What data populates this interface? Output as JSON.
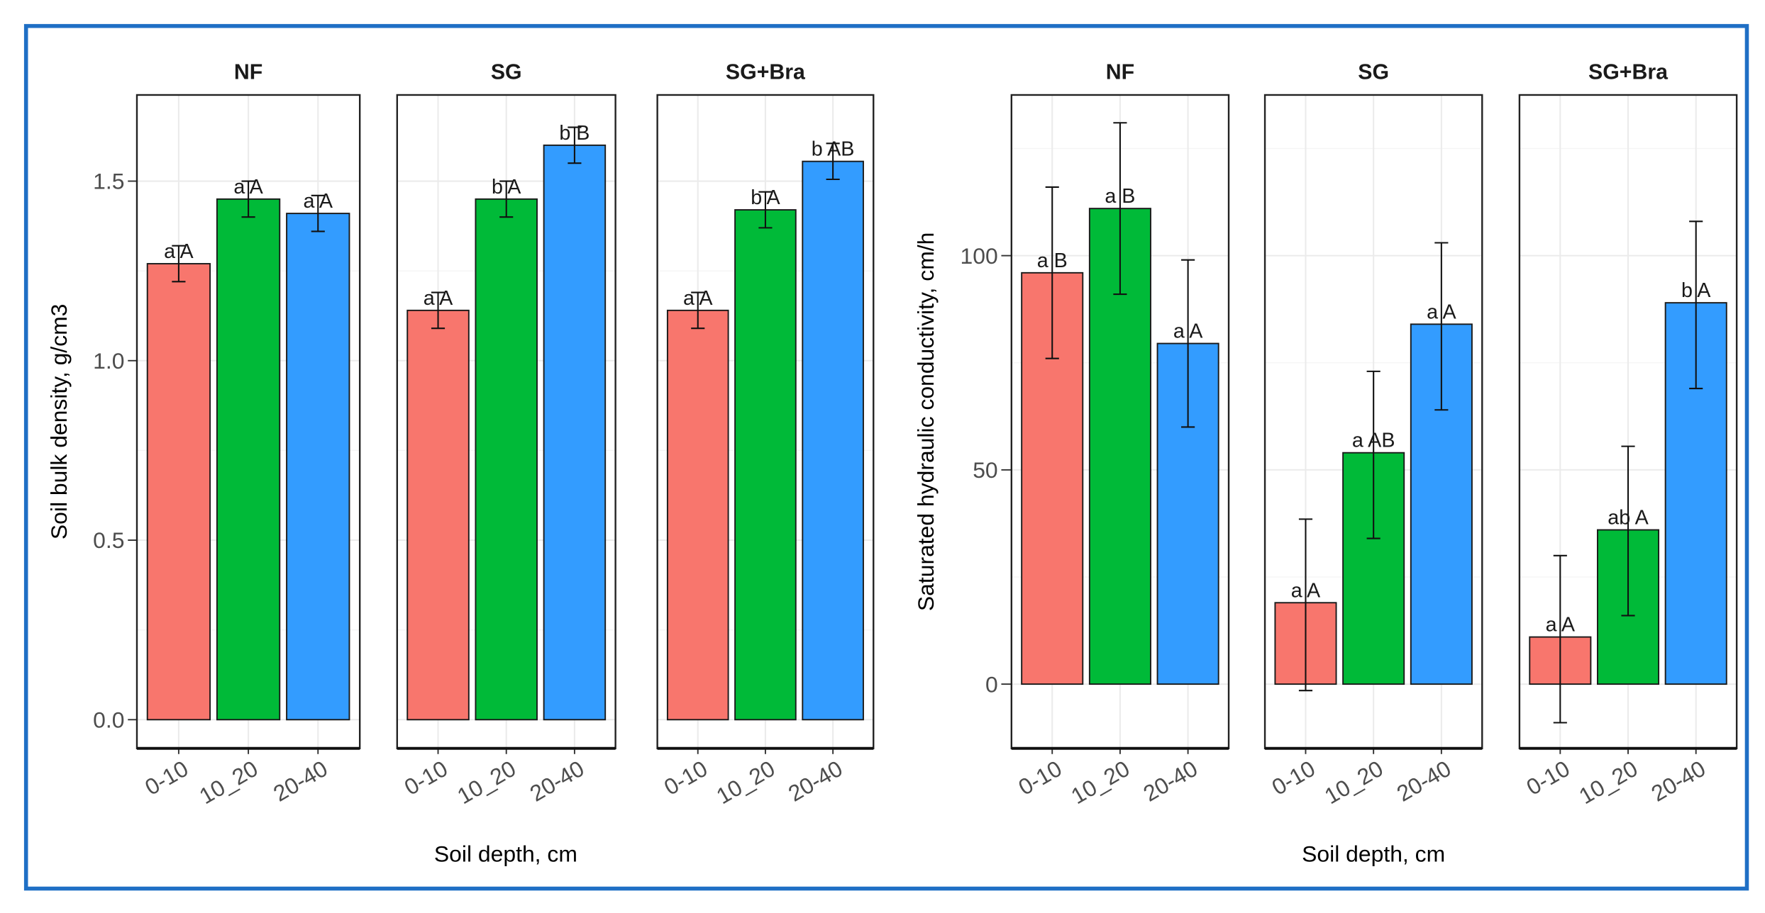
{
  "chart_data": [
    {
      "type": "bar",
      "title": "",
      "xlabel": "Soil depth, cm",
      "ylabel": "Soil bulk density, g/cm3",
      "ylim": [
        -0.08,
        1.74
      ],
      "yticks": [
        0.0,
        0.5,
        1.0,
        1.5
      ],
      "ytick_labels": [
        "0.0",
        "0.5",
        "1.0",
        "1.5"
      ],
      "categories": [
        "0-10",
        "10_20",
        "20-40"
      ],
      "colors": [
        "#F8766D",
        "#00BA38",
        "#339CFF"
      ],
      "grid": true,
      "facets": [
        {
          "name": "NF",
          "values": [
            1.27,
            1.45,
            1.41
          ],
          "lower": [
            1.22,
            1.4,
            1.36
          ],
          "upper": [
            1.32,
            1.5,
            1.46
          ],
          "labels": [
            "a A",
            "a A",
            "a A"
          ]
        },
        {
          "name": "SG",
          "values": [
            1.14,
            1.45,
            1.6
          ],
          "lower": [
            1.09,
            1.4,
            1.55
          ],
          "upper": [
            1.19,
            1.5,
            1.65
          ],
          "labels": [
            "a A",
            "b A",
            "b B"
          ]
        },
        {
          "name": "SG+Bra",
          "values": [
            1.14,
            1.42,
            1.555
          ],
          "lower": [
            1.09,
            1.37,
            1.505
          ],
          "upper": [
            1.19,
            1.47,
            1.605
          ],
          "labels": [
            "a A",
            "b A",
            "b AB"
          ]
        }
      ]
    },
    {
      "type": "bar",
      "title": "",
      "xlabel": "Soil depth, cm",
      "ylabel": "Saturated hydraulic conductivity, cm/h",
      "ylim": [
        -15,
        137.5
      ],
      "yticks": [
        0,
        50,
        100
      ],
      "ytick_labels": [
        "0",
        "50",
        "100"
      ],
      "categories": [
        "0-10",
        "10_20",
        "20-40"
      ],
      "colors": [
        "#F8766D",
        "#00BA38",
        "#339CFF"
      ],
      "grid": true,
      "facets": [
        {
          "name": "NF",
          "values": [
            96,
            111,
            79.5
          ],
          "lower": [
            76,
            91,
            60
          ],
          "upper": [
            116,
            131,
            99
          ],
          "labels": [
            "a B",
            "a B",
            "a A"
          ]
        },
        {
          "name": "SG",
          "values": [
            19,
            54,
            84
          ],
          "lower": [
            -1.5,
            34,
            64
          ],
          "upper": [
            38.5,
            73,
            103
          ],
          "labels": [
            "a A",
            "a AB",
            "a A"
          ]
        },
        {
          "name": "SG+Bra",
          "values": [
            11,
            36,
            89
          ],
          "lower": [
            -9,
            16,
            69
          ],
          "upper": [
            30,
            55.5,
            108
          ],
          "labels": [
            "a A",
            "ab A",
            "b A"
          ]
        }
      ]
    }
  ]
}
